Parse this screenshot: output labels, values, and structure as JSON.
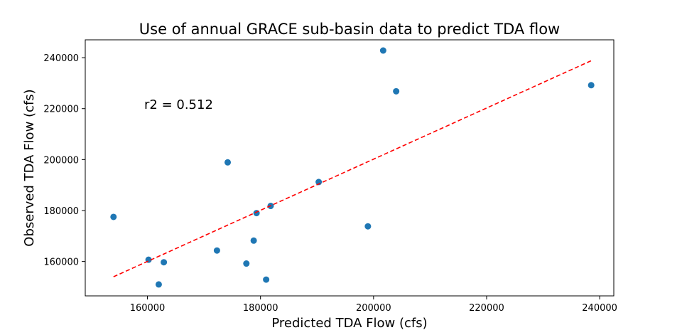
{
  "chart_data": {
    "type": "scatter",
    "title": "Use of annual GRACE sub-basin data to predict TDA flow",
    "xlabel": "Predicted TDA Flow (cfs)",
    "ylabel": "Observed TDA Flow (cfs)",
    "annotation": "r2 = 0.512",
    "xlim": [
      149000,
      242500
    ],
    "ylim": [
      146500,
      247000
    ],
    "xticks": [
      160000,
      180000,
      200000,
      220000,
      240000
    ],
    "yticks": [
      160000,
      180000,
      200000,
      220000,
      240000
    ],
    "colors": {
      "points": "#1f77b4",
      "fit": "#ff0000"
    },
    "fit_line": {
      "style": "dashed",
      "x": [
        154000,
        238500
      ],
      "y": [
        154000,
        238800
      ]
    },
    "points": [
      {
        "x": 154000,
        "y": 177500
      },
      {
        "x": 160200,
        "y": 160700
      },
      {
        "x": 162900,
        "y": 159700
      },
      {
        "x": 162000,
        "y": 151000
      },
      {
        "x": 172300,
        "y": 164300
      },
      {
        "x": 174200,
        "y": 198900
      },
      {
        "x": 177500,
        "y": 159200
      },
      {
        "x": 178800,
        "y": 168200
      },
      {
        "x": 179300,
        "y": 179000
      },
      {
        "x": 181000,
        "y": 152900
      },
      {
        "x": 181800,
        "y": 181800
      },
      {
        "x": 190300,
        "y": 191200
      },
      {
        "x": 199000,
        "y": 173800
      },
      {
        "x": 201700,
        "y": 242800
      },
      {
        "x": 204000,
        "y": 226800
      },
      {
        "x": 238500,
        "y": 229200
      }
    ]
  }
}
